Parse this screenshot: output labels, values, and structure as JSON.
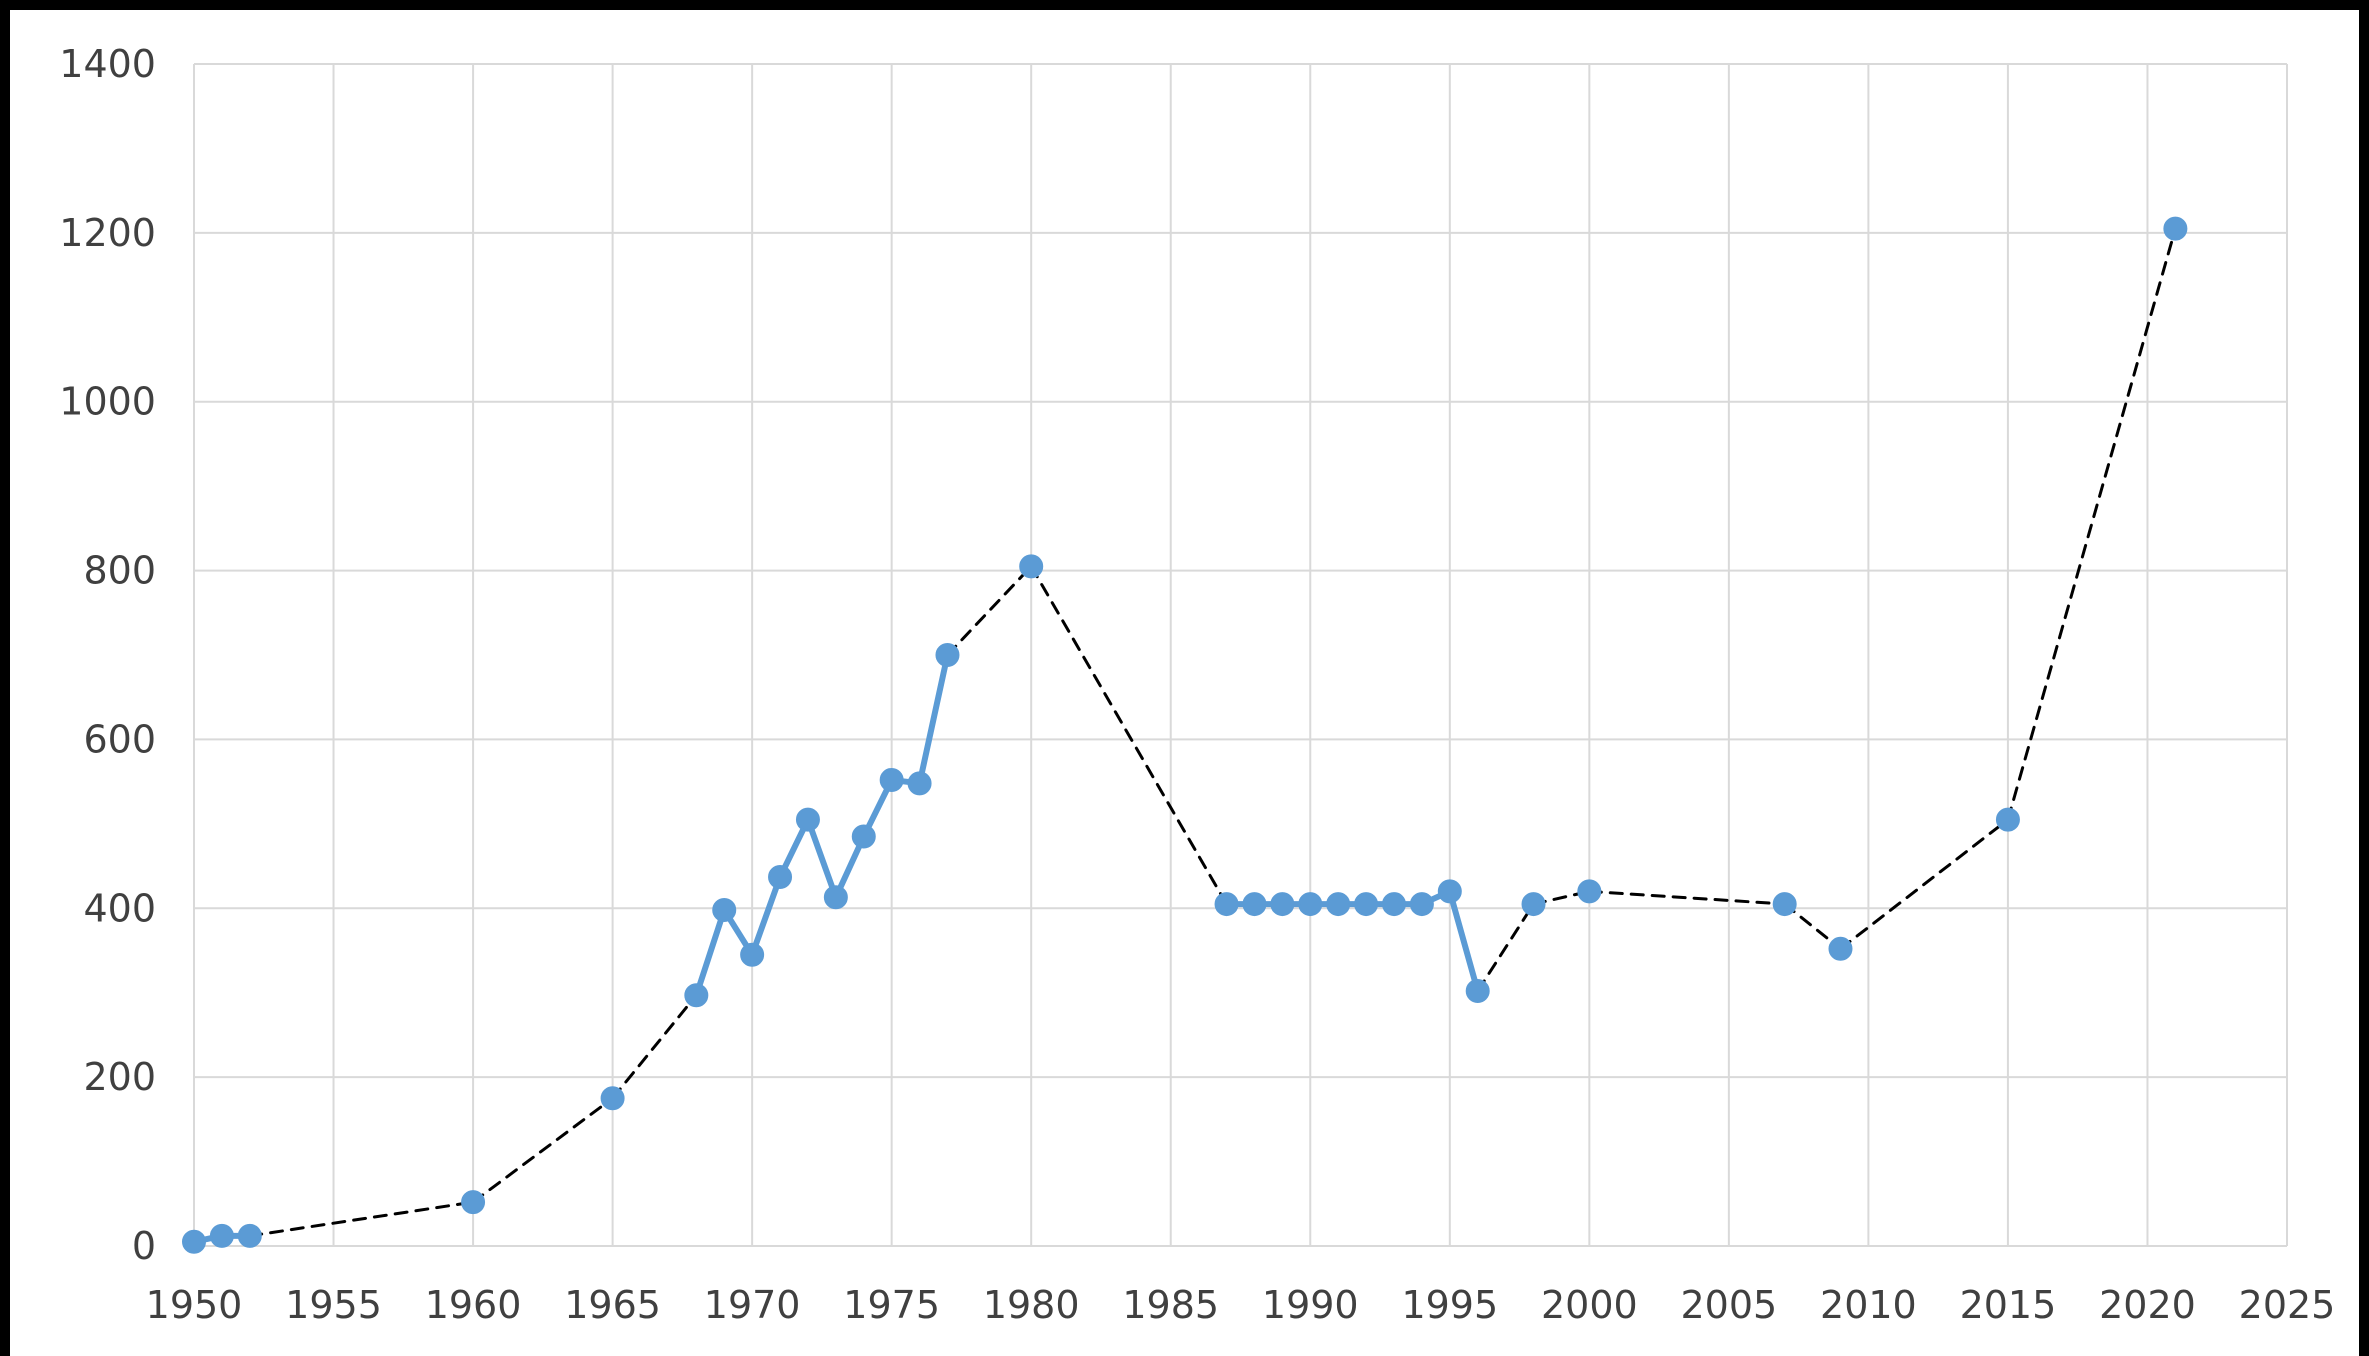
{
  "chart_data": {
    "type": "line",
    "title": "",
    "xlabel": "",
    "ylabel": "",
    "xlim": [
      1950,
      2025
    ],
    "ylim": [
      0,
      1400
    ],
    "x_ticks": [
      1950,
      1955,
      1960,
      1965,
      1970,
      1975,
      1980,
      1985,
      1990,
      1995,
      2000,
      2005,
      2010,
      2015,
      2020,
      2025
    ],
    "y_ticks": [
      0,
      200,
      400,
      600,
      800,
      1000,
      1200,
      1400
    ],
    "grid": true,
    "legend": "none",
    "colors": {
      "series": "#5b9bd5",
      "interpolation": "#000000",
      "grid": "#d9d9d9",
      "text": "#404040"
    },
    "series": [
      {
        "points": [
          [
            1950,
            5
          ],
          [
            1951,
            12
          ],
          [
            1952,
            12
          ],
          [
            1960,
            52
          ],
          [
            1965,
            175
          ],
          [
            1968,
            297
          ],
          [
            1969,
            398
          ],
          [
            1970,
            345
          ],
          [
            1971,
            437
          ],
          [
            1972,
            505
          ],
          [
            1973,
            413
          ],
          [
            1974,
            485
          ],
          [
            1975,
            552
          ],
          [
            1976,
            548
          ],
          [
            1977,
            700
          ],
          [
            1980,
            805
          ],
          [
            1987,
            405
          ],
          [
            1988,
            405
          ],
          [
            1989,
            405
          ],
          [
            1990,
            405
          ],
          [
            1991,
            405
          ],
          [
            1992,
            405
          ],
          [
            1993,
            405
          ],
          [
            1994,
            405
          ],
          [
            1995,
            420
          ],
          [
            1996,
            302
          ],
          [
            1998,
            405
          ],
          [
            2000,
            420
          ],
          [
            2007,
            405
          ],
          [
            2009,
            352
          ],
          [
            2015,
            505
          ],
          [
            2021,
            1205
          ]
        ]
      }
    ]
  }
}
